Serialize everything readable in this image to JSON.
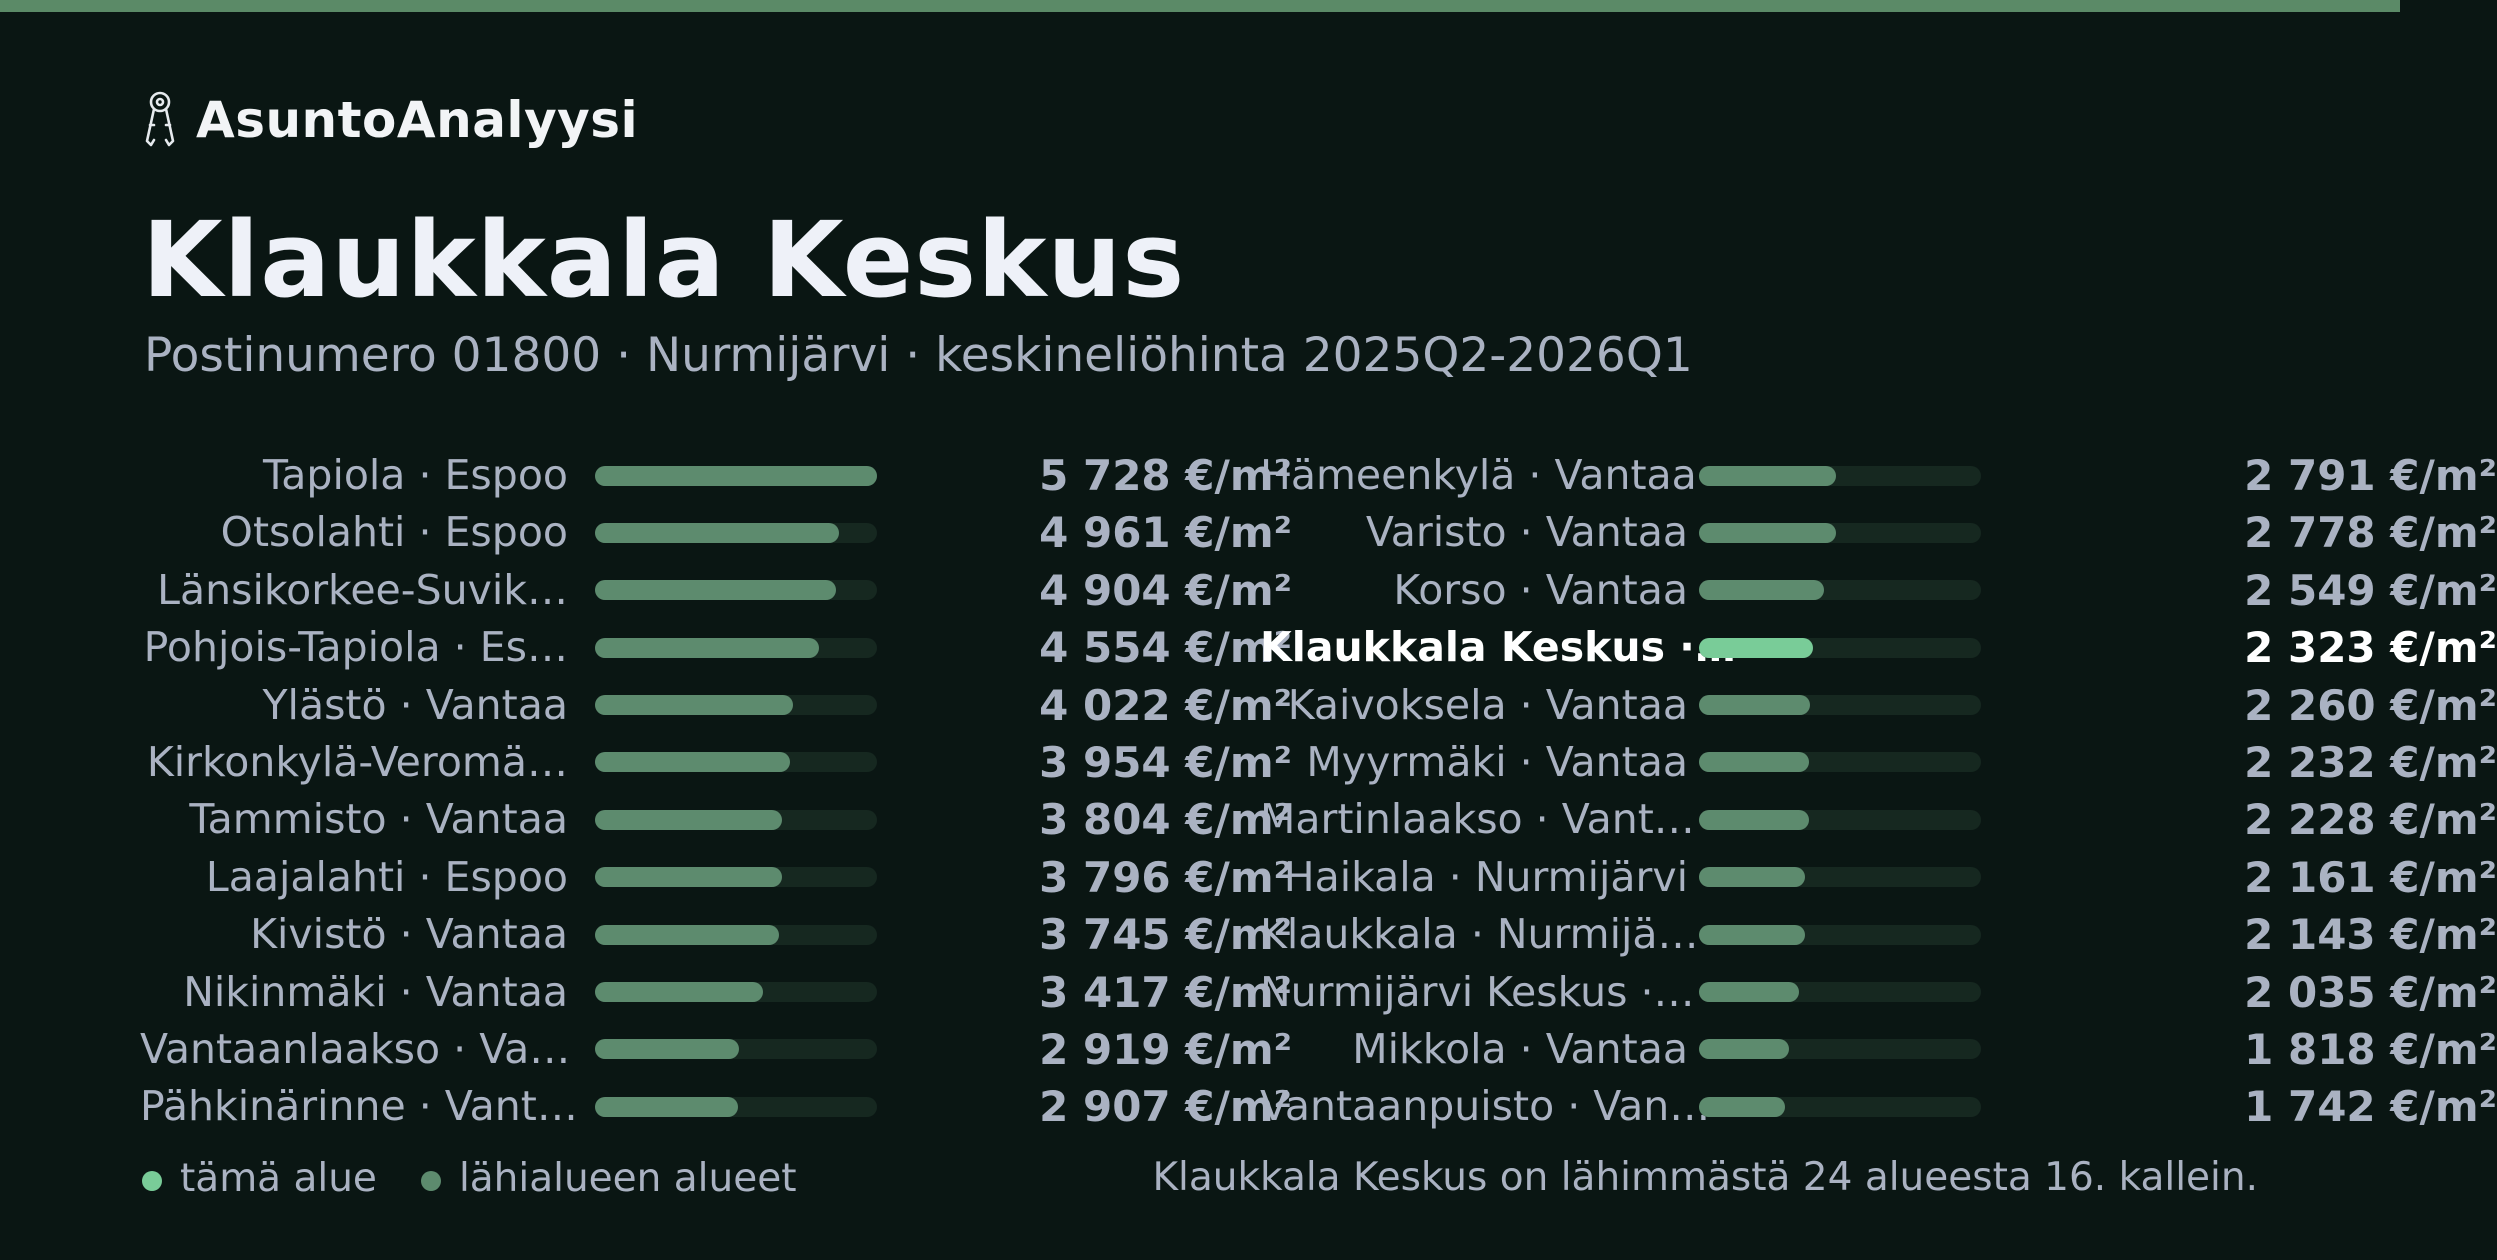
{
  "brand": {
    "name": "AsuntoAnalyysi",
    "icon": "keys-icon"
  },
  "header": {
    "title": "Klaukkala Keskus",
    "subtitle": "Postinumero 01800 · Nurmijärvi · keskineliöhinta 2025Q2-2026Q1"
  },
  "colors": {
    "background": "#0a1613",
    "accent_bar": "#5b8a67",
    "bar_fill": "#5d8b6e",
    "bar_track": "#162820",
    "highlight": "#79cc98",
    "muted_text": "#aab2c2"
  },
  "chart_data": {
    "type": "bar",
    "orientation": "horizontal",
    "unit": "€/m²",
    "xlim": [
      0,
      5728
    ],
    "highlight_index": 15,
    "categories": [
      "Tapiola · Espoo",
      "Otsolahti · Espoo",
      "Länsikorkee-Suvik…",
      "Pohjois-Tapiola · Es…",
      "Ylästö · Vantaa",
      "Kirkonkylä-Veromä…",
      "Tammisto · Vantaa",
      "Laajalahti · Espoo",
      "Kivistö · Vantaa",
      "Nikinmäki · Vantaa",
      "Vantaanlaakso · Va…",
      "Pähkinärinne · Vant…",
      "Hämeenkylä · Vantaa",
      "Varisto · Vantaa",
      "Korso · Vantaa",
      "Klaukkala Keskus ·…",
      "Kaivoksela · Vantaa",
      "Myyrmäki · Vantaa",
      "Martinlaakso · Vant…",
      "Haikala · Nurmijärvi",
      "Klaukkala · Nurmijä…",
      "Nurmijärvi Keskus ·…",
      "Mikkola · Vantaa",
      "Vantaanpuisto · Van…"
    ],
    "values": [
      5728,
      4961,
      4904,
      4554,
      4022,
      3954,
      3804,
      3796,
      3745,
      3417,
      2919,
      2907,
      2791,
      2778,
      2549,
      2323,
      2260,
      2232,
      2228,
      2161,
      2143,
      2035,
      1818,
      1742
    ],
    "value_labels": [
      "5 728 €/m²",
      "4 961 €/m²",
      "4 904 €/m²",
      "4 554 €/m²",
      "4 022 €/m²",
      "3 954 €/m²",
      "3 804 €/m²",
      "3 796 €/m²",
      "3 745 €/m²",
      "3 417 €/m²",
      "2 919 €/m²",
      "2 907 €/m²",
      "2 791 €/m²",
      "2 778 €/m²",
      "2 549 €/m²",
      "2 323 €/m²",
      "2 260 €/m²",
      "2 232 €/m²",
      "2 228 €/m²",
      "2 161 €/m²",
      "2 143 €/m²",
      "2 035 €/m²",
      "1 818 €/m²",
      "1 742 €/m²"
    ],
    "legend": {
      "placement": "bottom-left",
      "items": [
        {
          "label": "tämä alue",
          "color": "#79cc98"
        },
        {
          "label": "lähialueen alueet",
          "color": "#5d8b6e"
        }
      ]
    }
  },
  "footnote": "Klaukkala Keskus on lähimmästä 24 alueesta 16. kallein."
}
